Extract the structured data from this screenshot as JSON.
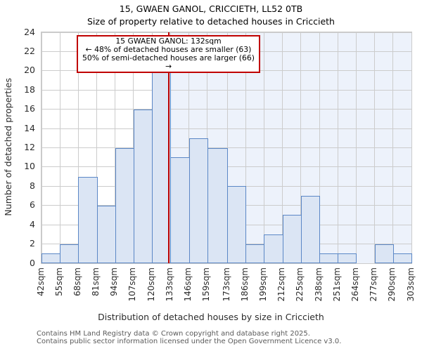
{
  "header": {
    "title": "15, GWAEN GANOL, CRICCIETH, LL52 0TB",
    "subtitle": "Size of property relative to detached houses in Criccieth"
  },
  "annotation": {
    "line1": "15 GWAEN GANOL: 132sqm",
    "line2": "← 48% of detached houses are smaller (63)",
    "line3": "50% of semi-detached houses are larger (66) →"
  },
  "chart_data": {
    "type": "bar",
    "title": "15, GWAEN GANOL, CRICCIETH, LL52 0TB",
    "subtitle": "Size of property relative to detached houses in Criccieth",
    "xlabel": "Distribution of detached houses by size in Criccieth",
    "ylabel": "Number of detached properties",
    "bin_edges_sqm": [
      42,
      55,
      68,
      81,
      94,
      107,
      120,
      133,
      146,
      159,
      173,
      186,
      199,
      212,
      225,
      238,
      251,
      264,
      277,
      290,
      303
    ],
    "xtick_labels": [
      "42sqm",
      "55sqm",
      "68sqm",
      "81sqm",
      "94sqm",
      "107sqm",
      "120sqm",
      "133sqm",
      "146sqm",
      "159sqm",
      "173sqm",
      "186sqm",
      "199sqm",
      "212sqm",
      "225sqm",
      "238sqm",
      "251sqm",
      "264sqm",
      "277sqm",
      "290sqm",
      "303sqm"
    ],
    "values": [
      1,
      2,
      9,
      6,
      12,
      16,
      20,
      11,
      13,
      12,
      8,
      2,
      3,
      5,
      7,
      1,
      1,
      0,
      2,
      1
    ],
    "ylim": [
      0,
      24
    ],
    "ytick_step": 2,
    "grid": true,
    "legend": "none",
    "marker_value_sqm": 132,
    "shade_from_sqm": 132,
    "shade_to_sqm": 303,
    "colors": {
      "bar_fill": "#dbe5f4",
      "bar_edge": "#5b87c6",
      "marker_line": "#bb0000",
      "shade_right_of_marker": "#edf2fb",
      "grid": "#cccccc",
      "annotation_border": "#c00000"
    }
  },
  "footer": {
    "line1": "Contains HM Land Registry data © Crown copyright and database right 2025.",
    "line2": "Contains public sector information licensed under the Open Government Licence v3.0."
  }
}
